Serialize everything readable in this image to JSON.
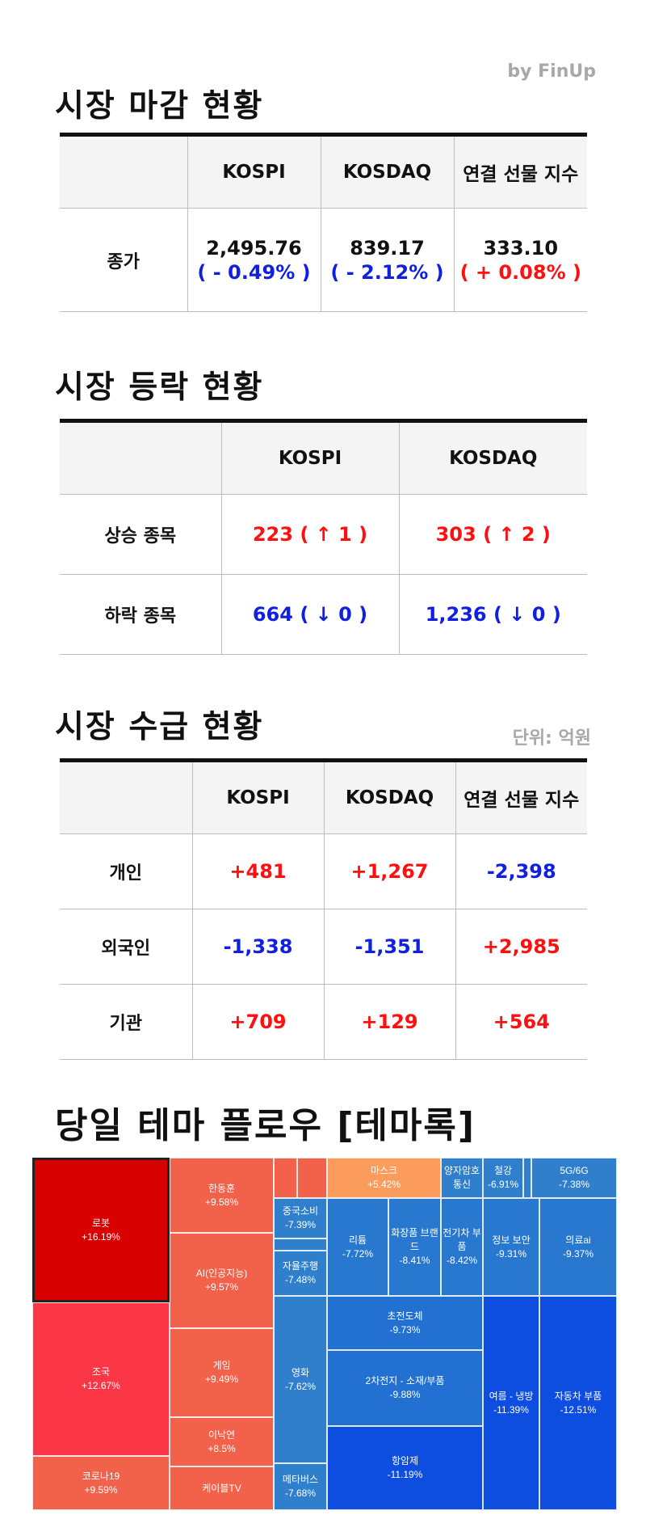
{
  "byline": "by FinUp",
  "close": {
    "title": "시장 마감 현황",
    "headers": [
      "",
      "KOSPI",
      "KOSDAQ",
      "연결 선물 지수"
    ],
    "row_label": "종가",
    "cells": [
      {
        "value": "2,495.76",
        "change": "( - 0.49% )",
        "color": "#1020e0"
      },
      {
        "value": "839.17",
        "change": "( - 2.12% )",
        "color": "#1020e0"
      },
      {
        "value": "333.10",
        "change": "( + 0.08% )",
        "color": "#ff1010"
      }
    ]
  },
  "updown": {
    "title": "시장 등락 현황",
    "headers": [
      "",
      "KOSPI",
      "KOSDAQ"
    ],
    "rows": [
      {
        "label": "상승 종목",
        "kospi": "223 ( ↑ 1 )",
        "kosdaq": "303 ( ↑ 2 )",
        "color": "#ff1010"
      },
      {
        "label": "하락 종목",
        "kospi": "664 ( ↓ 0 )",
        "kosdaq": "1,236 ( ↓ 0 )",
        "color": "#1020e0"
      }
    ]
  },
  "flow": {
    "title": "시장 수급 현황",
    "unit": "단위: 억원",
    "headers": [
      "",
      "KOSPI",
      "KOSDAQ",
      "연결 선물 지수"
    ],
    "rows": [
      {
        "label": "개인",
        "values": [
          "+481",
          "+1,267",
          "-2,398"
        ]
      },
      {
        "label": "외국인",
        "values": [
          "-1,338",
          "-1,351",
          "+2,985"
        ]
      },
      {
        "label": "기관",
        "values": [
          "+709",
          "+129",
          "+564"
        ]
      }
    ]
  },
  "theme": {
    "title": "당일 테마 플로우 [테마록]",
    "items": [
      {
        "name": "로봇",
        "change": "+16.19%",
        "color": "#d90000",
        "selected": true
      },
      {
        "name": "조국",
        "change": "+12.67%",
        "color": "#fb3646"
      },
      {
        "name": "코로나19",
        "change": "+9.59%",
        "color": "#f2624a"
      },
      {
        "name": "한동훈",
        "change": "+9.58%",
        "color": "#f2624a"
      },
      {
        "name": "AI(인공지능)",
        "change": "+9.57%",
        "color": "#f2624a"
      },
      {
        "name": "게임",
        "change": "+9.49%",
        "color": "#f2624a"
      },
      {
        "name": "이낙연",
        "change": "+8.5%",
        "color": "#f2624a"
      },
      {
        "name": "케이블TV",
        "change": "",
        "color": "#f2624a"
      },
      {
        "name": "",
        "change": "",
        "color": "#f2624a"
      },
      {
        "name": "",
        "change": "",
        "color": "#f2624a"
      },
      {
        "name": "마스크",
        "change": "+5.42%",
        "color": "#fb9c5c"
      },
      {
        "name": "양자암호 통신",
        "change": "",
        "color": "#2f7fcc"
      },
      {
        "name": "철강",
        "change": "-6.91%",
        "color": "#2f7fcc"
      },
      {
        "name": "",
        "change": "",
        "color": "#2f7fcc"
      },
      {
        "name": "5G/6G",
        "change": "-7.38%",
        "color": "#2f7fcc"
      },
      {
        "name": "중국소비",
        "change": "-7.39%",
        "color": "#2f7fcc"
      },
      {
        "name": "",
        "change": "",
        "color": "#2f7fcc"
      },
      {
        "name": "자율주행",
        "change": "-7.48%",
        "color": "#2f7fcc"
      },
      {
        "name": "영화",
        "change": "-7.62%",
        "color": "#2f7fcc"
      },
      {
        "name": "메타버스",
        "change": "-7.68%",
        "color": "#2f7fcc"
      },
      {
        "name": "리튬",
        "change": "-7.72%",
        "color": "#2878d0"
      },
      {
        "name": "화장품 브랜드",
        "change": "-8.41%",
        "color": "#2878d0"
      },
      {
        "name": "전기차 부품",
        "change": "-8.42%",
        "color": "#2878d0"
      },
      {
        "name": "정보 보안",
        "change": "-9.31%",
        "color": "#2878d0"
      },
      {
        "name": "의료ai",
        "change": "-9.37%",
        "color": "#2878d0"
      },
      {
        "name": "초전도체",
        "change": "-9.73%",
        "color": "#2270d2"
      },
      {
        "name": "2차전지 - 소재/부품",
        "change": "-9.88%",
        "color": "#2270d2"
      },
      {
        "name": "항암제",
        "change": "-11.19%",
        "color": "#0d4de0"
      },
      {
        "name": "여름 - 냉방",
        "change": "-11.39%",
        "color": "#0d4de0"
      },
      {
        "name": "자동차 부품",
        "change": "-12.51%",
        "color": "#0d4de0"
      }
    ]
  }
}
